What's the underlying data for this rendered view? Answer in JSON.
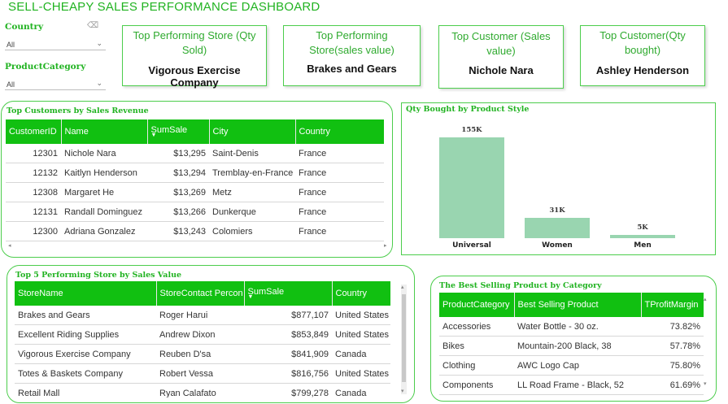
{
  "title": "SELL-CHEAPY SALES PERFORMANCE DASHBOARD",
  "filters": [
    {
      "label": "Country",
      "value": "All"
    },
    {
      "label": "ProductCategory",
      "value": "All"
    }
  ],
  "kpis": [
    {
      "label": "Top Performing Store (Qty Sold)",
      "value": "Vigorous Exercise Company"
    },
    {
      "label": "Top Performing Store(sales value)",
      "value": "Brakes and Gears"
    },
    {
      "label": "Top Customer (Sales value)",
      "value": "Nichole Nara"
    },
    {
      "label": "Top Customer(Qty bought)",
      "value": "Ashley Henderson"
    }
  ],
  "top_customers": {
    "title": "Top Customers by Sales Revenue",
    "columns": [
      "CustomerID",
      "Name",
      "SumSale",
      "City",
      "Country"
    ],
    "rows": [
      [
        "12301",
        "Nichole Nara",
        "$13,295",
        "Saint-Denis",
        "France"
      ],
      [
        "12132",
        "Kaitlyn Henderson",
        "$13,294",
        "Tremblay-en-France",
        "France"
      ],
      [
        "12308",
        "Margaret He",
        "$13,269",
        "Metz",
        "France"
      ],
      [
        "12131",
        "Randall Dominguez",
        "$13,266",
        "Dunkerque",
        "France"
      ],
      [
        "12300",
        "Adriana Gonzalez",
        "$13,243",
        "Colomiers",
        "France"
      ]
    ]
  },
  "top_stores": {
    "title": "Top 5 Performing Store by Sales Value",
    "columns": [
      "StoreName",
      "StoreContact Percon",
      "SumSale",
      "Country"
    ],
    "rows": [
      [
        "Brakes and Gears",
        "Roger Harui",
        "$877,107",
        "United States"
      ],
      [
        "Excellent Riding Supplies",
        "Andrew Dixon",
        "$853,849",
        "United States"
      ],
      [
        "Vigorous Exercise Company",
        "Reuben D'sa",
        "$841,909",
        "Canada"
      ],
      [
        "Totes & Baskets Company",
        "Robert Vessa",
        "$816,756",
        "United States"
      ],
      [
        "Retail Mall",
        "Ryan Calafato",
        "$799,278",
        "Canada"
      ]
    ]
  },
  "best_products": {
    "title": "The Best Selling Product by Category",
    "columns": [
      "ProductCategory",
      "Best Selling Product",
      "TProfitMargin"
    ],
    "rows": [
      [
        "Accessories",
        "Water Bottle - 30 oz.",
        "73.82%"
      ],
      [
        "Bikes",
        "Mountain-200 Black, 38",
        "57.78%"
      ],
      [
        "Clothing",
        "AWC Logo Cap",
        "75.80%"
      ],
      [
        "Components",
        "LL Road Frame - Black, 52",
        "61.69%"
      ]
    ]
  },
  "chart_data": {
    "type": "bar",
    "title": "Qty Bought by Product Style",
    "categories": [
      "Universal",
      "Women",
      "Men"
    ],
    "values": [
      155000,
      31000,
      5000
    ],
    "data_labels": [
      "155K",
      "31K",
      "5K"
    ],
    "ylim": [
      0,
      155000
    ],
    "grid": false,
    "color": "#99d5b0"
  },
  "colors": {
    "accent": "#21b321",
    "header": "#11c011",
    "border": "#4ccd4c"
  }
}
